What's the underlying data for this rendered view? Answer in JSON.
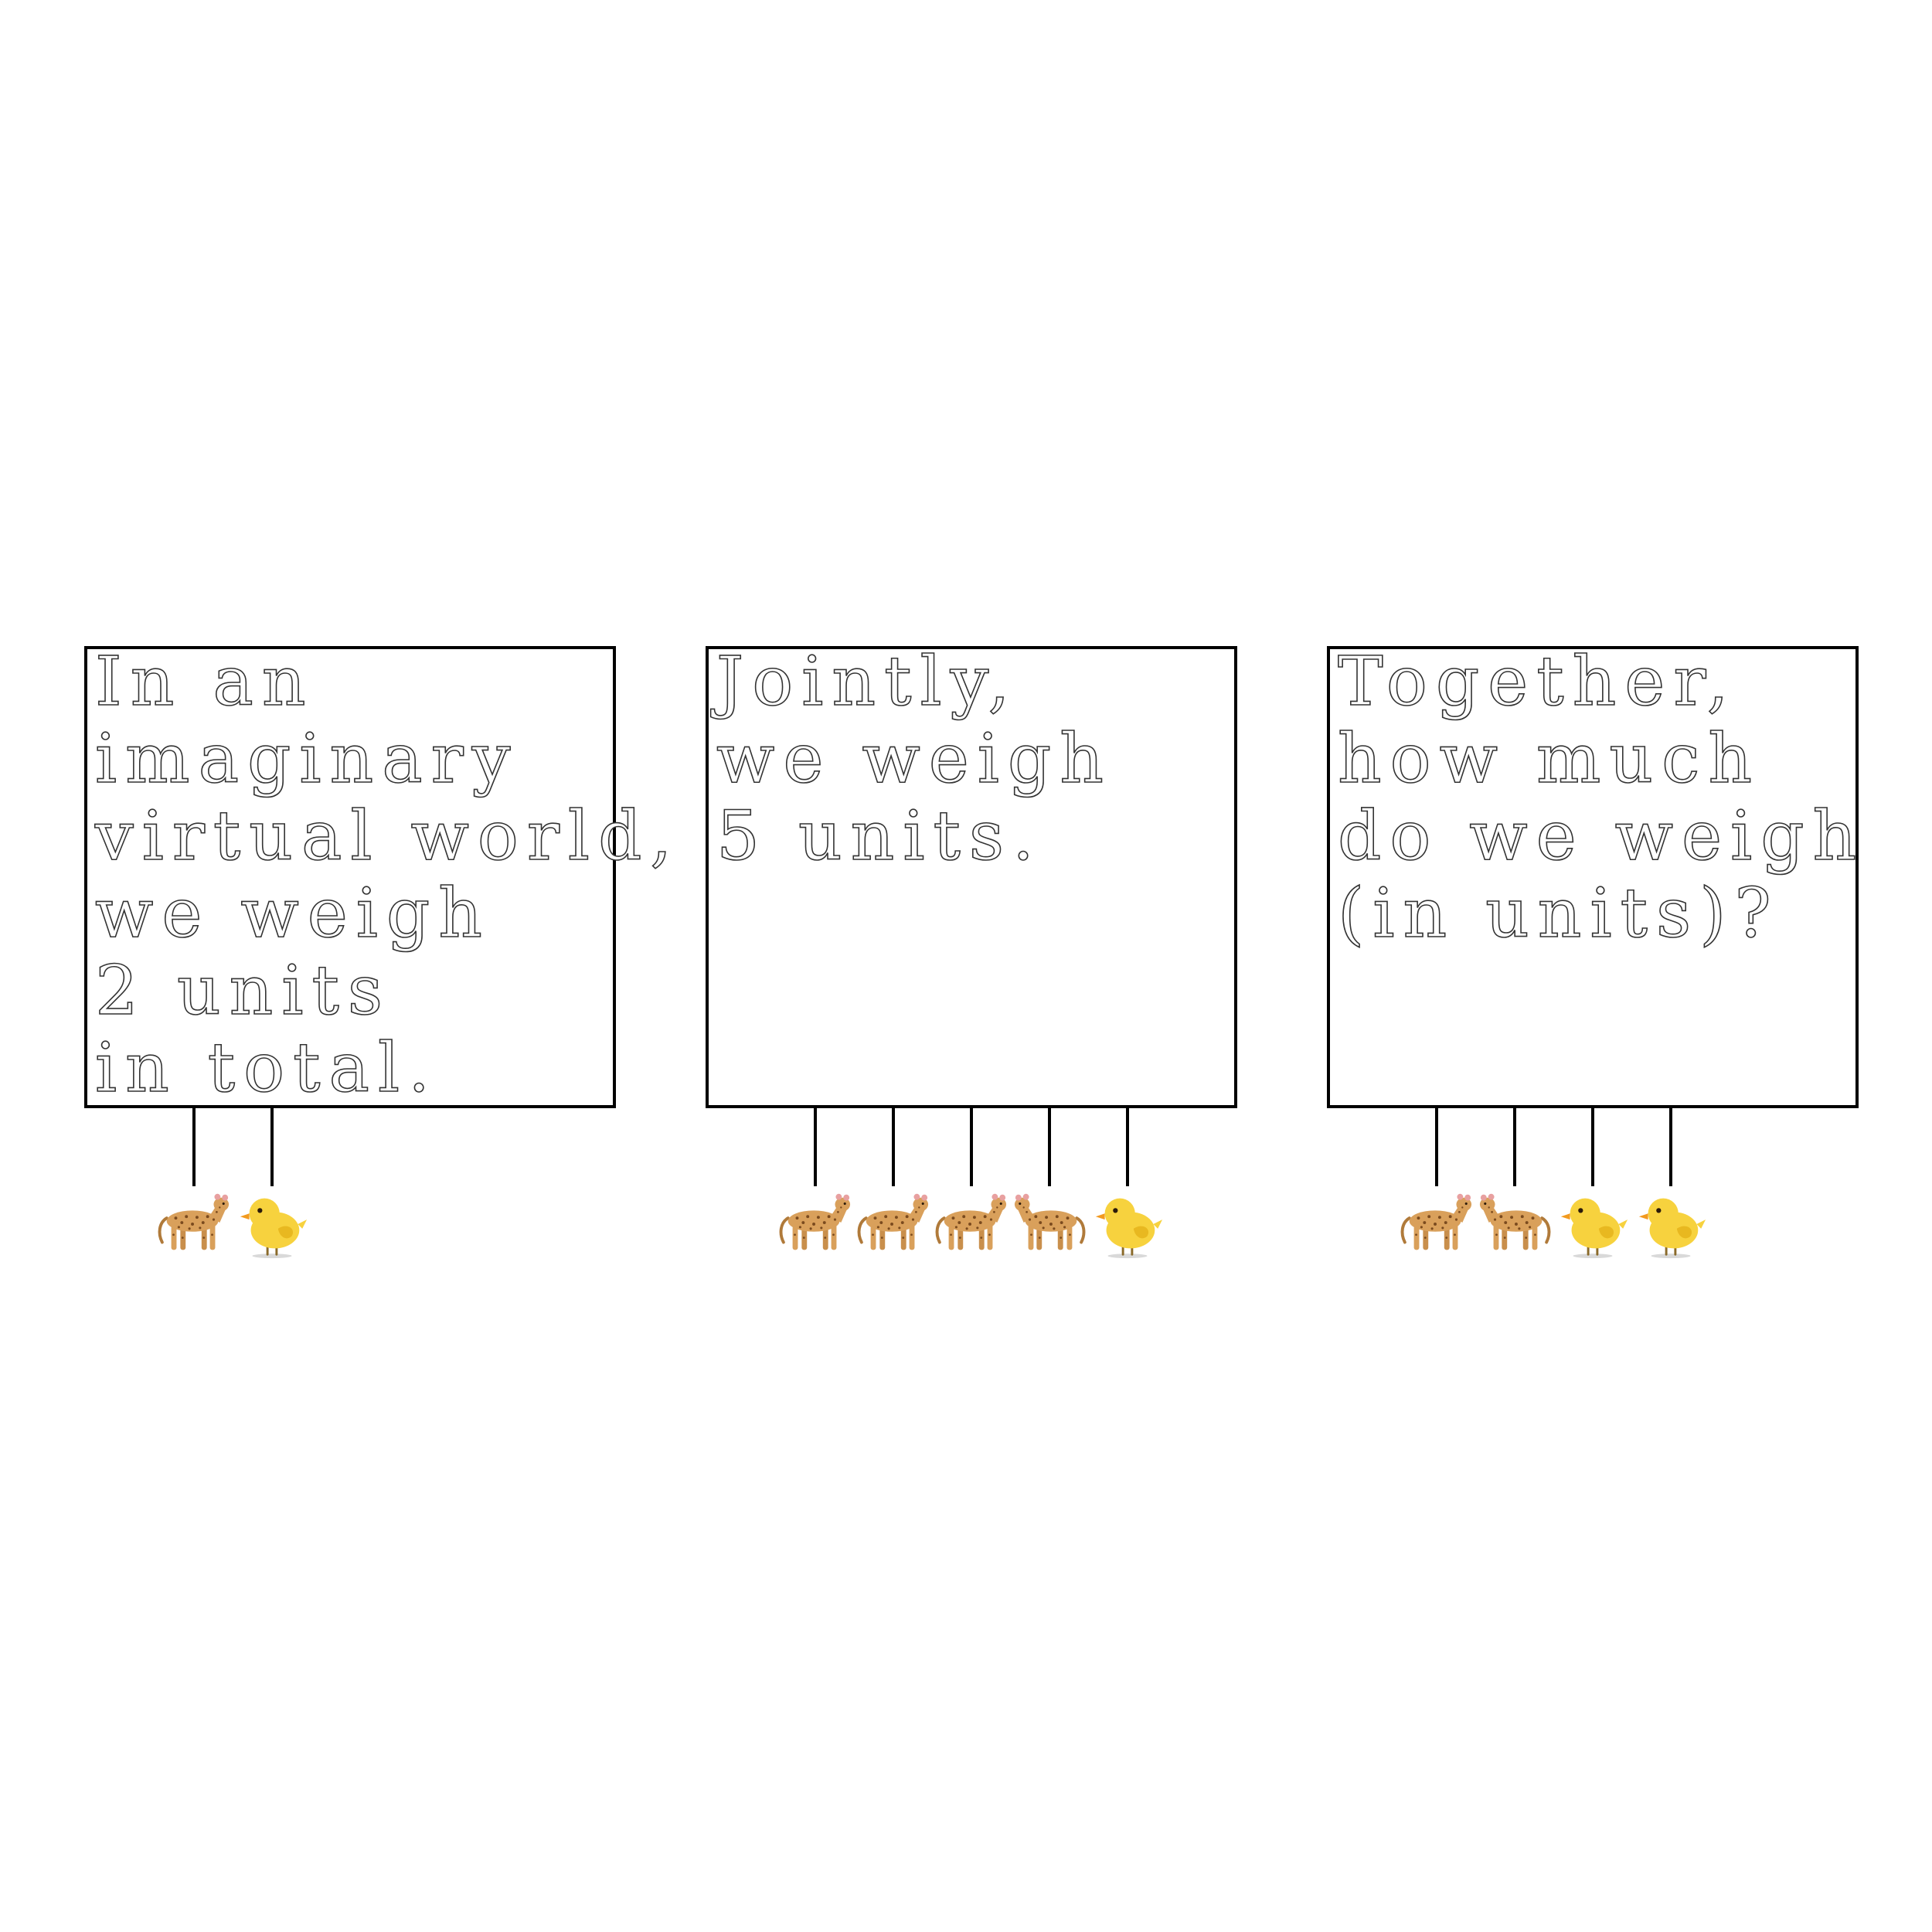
{
  "panels": [
    {
      "lines": [
        "In an",
        "imaginary",
        "virtual world,",
        "we weigh",
        "2 units",
        "in total."
      ],
      "animals": [
        "leopard-icon",
        "chick-icon"
      ]
    },
    {
      "lines": [
        "Jointly,",
        "we weigh",
        "5 units."
      ],
      "animals": [
        "leopard-icon",
        "leopard-icon",
        "leopard-icon",
        "leopard-icon",
        "chick-icon"
      ]
    },
    {
      "lines": [
        "Together,",
        "how much",
        "do we weigh",
        "(in units)?"
      ],
      "animals": [
        "leopard-icon",
        "leopard-icon",
        "chick-icon",
        "chick-icon"
      ]
    }
  ],
  "colors": {
    "border": "#000000",
    "text_outline": "#333333",
    "leopard_body": "#d9a05b",
    "leopard_spots": "#7a4a1e",
    "chick_body": "#f7d23e",
    "chick_beak": "#f29a1f"
  }
}
